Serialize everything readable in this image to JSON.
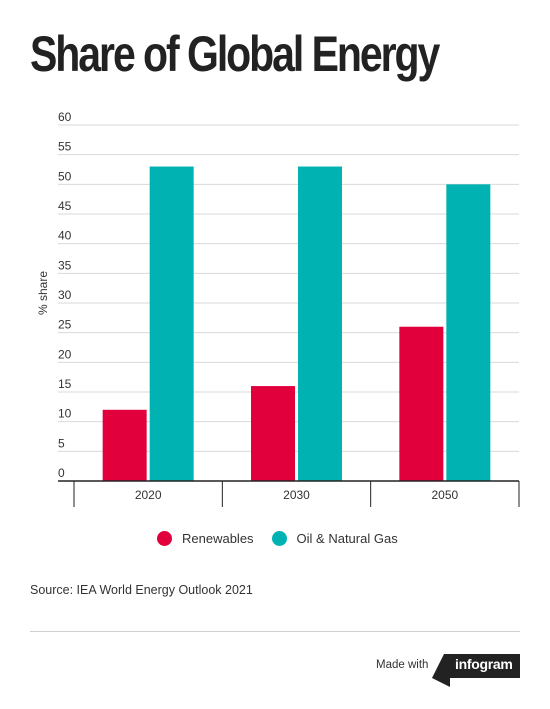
{
  "title": "Share of Global Energy",
  "chart_data": {
    "type": "bar",
    "categories": [
      "2020",
      "2030",
      "2050"
    ],
    "series": [
      {
        "name": "Renewables",
        "color": "#e2003c",
        "values": [
          12,
          16,
          26
        ]
      },
      {
        "name": "Oil & Natural Gas",
        "color": "#00b2b2",
        "values": [
          53,
          53,
          50
        ]
      }
    ],
    "ylabel": "% share",
    "xlabel": "",
    "ylim": [
      0,
      60
    ],
    "yticks": [
      0,
      5,
      10,
      15,
      20,
      25,
      30,
      35,
      40,
      45,
      50,
      55,
      60
    ],
    "grid": true,
    "legend_position": "bottom"
  },
  "source": "Source: IEA World Energy Outlook 2021",
  "footer": {
    "made_with": "Made with",
    "brand": "infogram"
  }
}
